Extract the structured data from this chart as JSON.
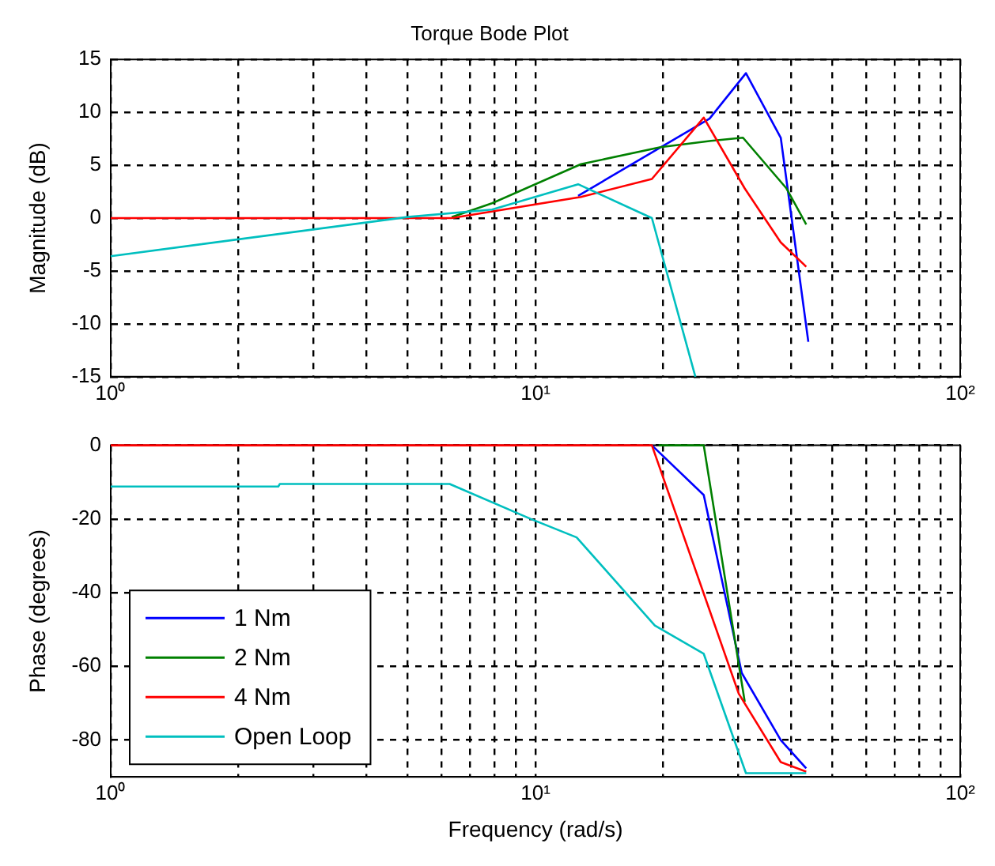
{
  "chart_data": [
    {
      "type": "line",
      "title": "Torque Bode Plot",
      "ylabel": "Magnitude (dB)",
      "log": "x",
      "grid": true,
      "legend": false,
      "marker": "none",
      "line_style": "solid",
      "xlim": [
        1,
        100
      ],
      "xticks": [
        {
          "value": 1,
          "label": "10⁰"
        },
        {
          "value": 2,
          "label": null
        },
        {
          "value": 3,
          "label": null
        },
        {
          "value": 4,
          "label": null
        },
        {
          "value": 5,
          "label": null
        },
        {
          "value": 6,
          "label": null
        },
        {
          "value": 7,
          "label": null
        },
        {
          "value": 8,
          "label": null
        },
        {
          "value": 9,
          "label": null
        },
        {
          "value": 10,
          "label": "10¹"
        },
        {
          "value": 20,
          "label": null
        },
        {
          "value": 30,
          "label": null
        },
        {
          "value": 40,
          "label": null
        },
        {
          "value": 50,
          "label": null
        },
        {
          "value": 60,
          "label": null
        },
        {
          "value": 70,
          "label": null
        },
        {
          "value": 80,
          "label": null
        },
        {
          "value": 90,
          "label": null
        },
        {
          "value": 100,
          "label": "10²"
        }
      ],
      "ylim": [
        -15,
        15
      ],
      "yticks": [
        -15,
        -10,
        -5,
        0,
        5,
        10,
        15
      ],
      "series": [
        {
          "color": "#0000ff",
          "x": [
            12.6,
            25.7,
            31.3,
            37.8,
            43.9
          ],
          "values": [
            2.1,
            9.4,
            13.7,
            7.6,
            -11.7
          ]
        },
        {
          "color": "#008000",
          "x": [
            6.35,
            7.9,
            12.8,
            19.7,
            25.9,
            30.8,
            39.0,
            43.4
          ],
          "values": [
            0.1,
            1.4,
            5.1,
            6.7,
            7.3,
            7.6,
            2.8,
            -0.6
          ]
        },
        {
          "color": "#ff0000",
          "x": [
            1,
            6.35,
            12.8,
            18.8,
            24.9,
            31.1,
            37.8,
            43.4
          ],
          "values": [
            0,
            0,
            2.0,
            3.7,
            9.5,
            2.8,
            -2.3,
            -4.6
          ]
        },
        {
          "color": "#00bfbf",
          "x": [
            1,
            5.0,
            7.9,
            12.6,
            18.8,
            23.8
          ],
          "values": [
            -3.6,
            0.1,
            0.8,
            3.2,
            0,
            -15
          ]
        }
      ]
    },
    {
      "type": "line",
      "xlabel": "Frequency (rad/s)",
      "ylabel": "Phase (degrees)",
      "log": "x",
      "grid": true,
      "legend": "bottom left",
      "marker": "none",
      "line_style": "solid",
      "xlim": [
        1,
        100
      ],
      "xticks": [
        {
          "value": 1,
          "label": "10⁰"
        },
        {
          "value": 2,
          "label": null
        },
        {
          "value": 3,
          "label": null
        },
        {
          "value": 4,
          "label": null
        },
        {
          "value": 5,
          "label": null
        },
        {
          "value": 6,
          "label": null
        },
        {
          "value": 7,
          "label": null
        },
        {
          "value": 8,
          "label": null
        },
        {
          "value": 9,
          "label": null
        },
        {
          "value": 10,
          "label": "10¹"
        },
        {
          "value": 20,
          "label": null
        },
        {
          "value": 30,
          "label": null
        },
        {
          "value": 40,
          "label": null
        },
        {
          "value": 50,
          "label": null
        },
        {
          "value": 60,
          "label": null
        },
        {
          "value": 70,
          "label": null
        },
        {
          "value": 80,
          "label": null
        },
        {
          "value": 90,
          "label": null
        },
        {
          "value": 100,
          "label": "10²"
        }
      ],
      "ylim": [
        -90,
        0
      ],
      "yticks": [
        -80,
        -60,
        -40,
        -20,
        0
      ],
      "series": [
        {
          "name": "1 Nm",
          "color": "#0000ff",
          "x": [
            18.8,
            24.9,
            30.6,
            37.8,
            43.4
          ],
          "values": [
            0,
            -13.5,
            -61.8,
            -80,
            -87.7
          ]
        },
        {
          "name": "2 Nm",
          "color": "#008000",
          "x": [
            19.5,
            24.9,
            31.1
          ],
          "values": [
            0,
            0,
            -69.6
          ]
        },
        {
          "name": "4 Nm",
          "color": "#ff0000",
          "x": [
            1,
            18.8,
            30.1,
            37.8,
            43.4
          ],
          "values": [
            0,
            0,
            -67.4,
            -86,
            -88.6
          ]
        },
        {
          "name": "Open Loop",
          "color": "#00bfbf",
          "x": [
            1,
            2.48,
            2.5,
            6.28,
            9.76,
            12.5,
            19.1,
            24.9,
            31.3,
            43.4
          ],
          "values": [
            -11.2,
            -11.2,
            -10.5,
            -10.5,
            -20,
            -25,
            -48.9,
            -56.6,
            -89,
            -89
          ]
        }
      ]
    }
  ]
}
